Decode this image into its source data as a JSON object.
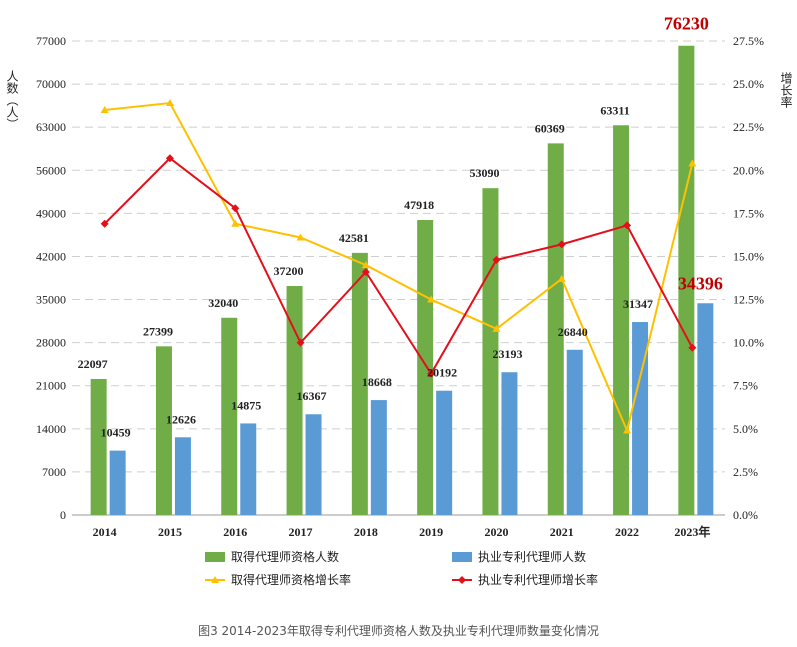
{
  "chart_data": {
    "type": "bar-line-combo",
    "title": "",
    "categories": [
      "2014",
      "2015",
      "2016",
      "2017",
      "2018",
      "2019",
      "2020",
      "2021",
      "2022",
      "2023年"
    ],
    "series": [
      {
        "name": "取得代理师资格人数",
        "kind": "bar",
        "axis": "left",
        "color": "#70ad47",
        "values": [
          22097,
          27399,
          32040,
          37200,
          42581,
          47918,
          53090,
          60369,
          63311,
          76230
        ]
      },
      {
        "name": "执业专利代理师人数",
        "kind": "bar",
        "axis": "left",
        "color": "#5b9bd5",
        "values": [
          10459,
          12626,
          14875,
          16367,
          18668,
          20192,
          23193,
          26840,
          31347,
          34396
        ]
      },
      {
        "name": "取得代理师资格增长率",
        "kind": "line",
        "axis": "right",
        "color": "#ffc000",
        "values": [
          23.5,
          23.9,
          16.9,
          16.1,
          14.5,
          12.5,
          10.8,
          13.7,
          4.9,
          20.4
        ]
      },
      {
        "name": "执业专利代理师增长率",
        "kind": "line",
        "axis": "right",
        "color": "#e3101b",
        "values": [
          16.9,
          20.7,
          17.8,
          10.0,
          14.1,
          8.2,
          14.8,
          15.7,
          16.8,
          9.7
        ]
      }
    ],
    "left_axis": {
      "label": "人数（人）",
      "ylim": [
        0,
        77000
      ],
      "ticks": [
        "0",
        "7000",
        "14000",
        "21000",
        "28000",
        "35000",
        "42000",
        "49000",
        "56000",
        "63000",
        "70000",
        "77000"
      ]
    },
    "right_axis": {
      "label": "增长率",
      "ylim": [
        0,
        27.5
      ],
      "ticks": [
        "0.0%",
        "2.5%",
        "5.0%",
        "7.5%",
        "10.0%",
        "12.5%",
        "15.0%",
        "17.5%",
        "20.0%",
        "22.5%",
        "25.0%",
        "27.5%"
      ]
    },
    "highlight_color": "#c00000",
    "grid": true,
    "legend_position": "bottom"
  },
  "caption": "图3 2014-2023年取得专利代理师资格人数及执业专利代理师数量变化情况"
}
